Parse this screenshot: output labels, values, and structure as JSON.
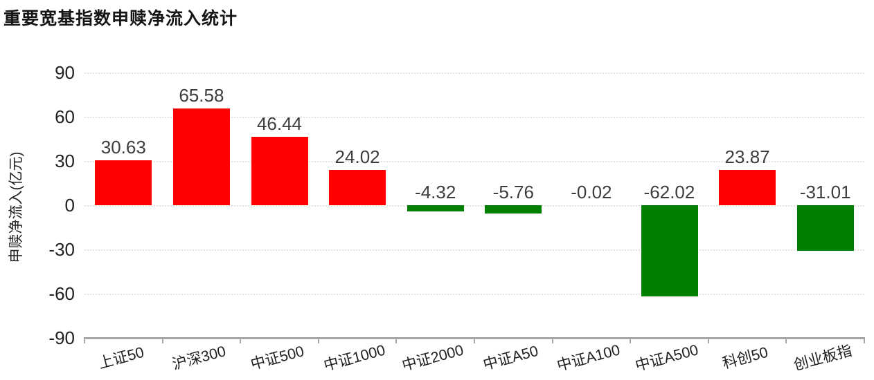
{
  "chart_data": {
    "type": "bar",
    "title": "重要宽基指数申赎净流入统计",
    "ylabel": "申赎净流入(亿元)",
    "xlabel": "",
    "categories": [
      "上证50",
      "沪深300",
      "中证500",
      "中证1000",
      "中证2000",
      "中证A50",
      "中证A100",
      "中证A500",
      "科创50",
      "创业板指"
    ],
    "values": [
      30.63,
      65.58,
      46.44,
      24.02,
      -4.32,
      -5.76,
      -0.02,
      -62.02,
      23.87,
      -31.01
    ],
    "value_labels": [
      "30.63",
      "65.58",
      "46.44",
      "24.02",
      "-4.32",
      "-5.76",
      "-0.02",
      "-62.02",
      "23.87",
      "-31.01"
    ],
    "y_ticks": [
      90,
      60,
      30,
      0,
      -30,
      -60,
      -90
    ],
    "ylim": [
      -90,
      90
    ],
    "legend": "none",
    "grid": "horizontal-dotted",
    "colors": {
      "positive_bar": "#fe0000",
      "negative_bar": "#008000",
      "gridline": "#e3e3e3",
      "axis": "#a6a6a6",
      "value_label": "#3d3d3d",
      "tick_label": "#1f1f1f",
      "title": "#151515"
    }
  }
}
